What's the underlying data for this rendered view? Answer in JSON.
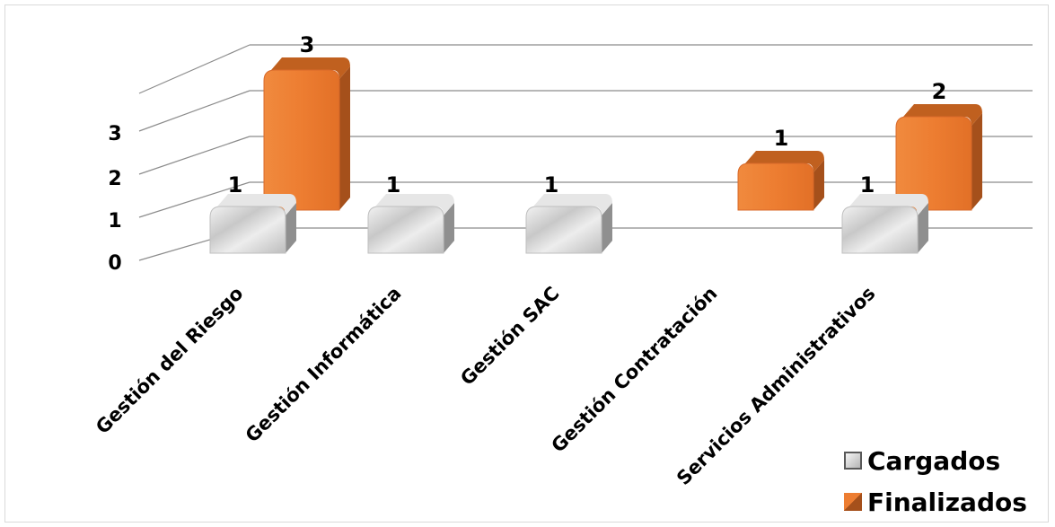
{
  "chart_data": {
    "type": "bar",
    "title": "",
    "xlabel": "",
    "ylabel": "",
    "categories": [
      "Gestión del Riesgo",
      "Gestión Informática",
      "Gestión SAC",
      "Gestión Contratación",
      "Servicios Administrativos"
    ],
    "series": [
      {
        "name": "Cargados",
        "values": [
          1,
          1,
          1,
          0,
          1
        ],
        "color": "#d4d4d4"
      },
      {
        "name": "Finalizados",
        "values": [
          3,
          0,
          0,
          1,
          2
        ],
        "color": "#ed7d31"
      }
    ],
    "data_labels": [
      [
        "1",
        "1",
        "1",
        "",
        "1"
      ],
      [
        "3",
        "",
        "",
        "1",
        "2"
      ]
    ],
    "yticks": [
      "0",
      "1",
      "2",
      "3"
    ],
    "ylim": [
      0,
      3
    ],
    "grid": true,
    "three_d": true,
    "legend_position": "bottom-right"
  }
}
